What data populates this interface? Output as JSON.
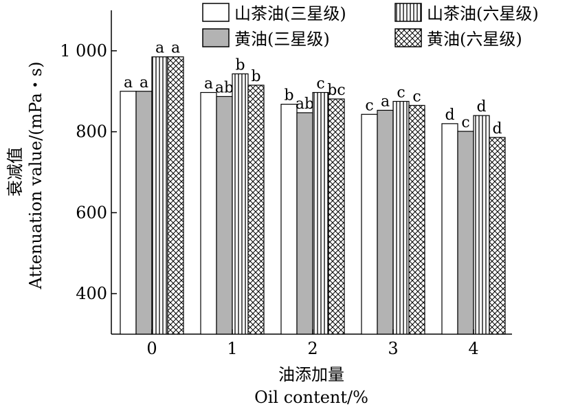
{
  "chart_data": {
    "type": "bar",
    "categories": [
      "0",
      "1",
      "2",
      "3",
      "4"
    ],
    "series": [
      {
        "name": "山茶油(三星级)",
        "values": [
          900,
          897,
          868,
          843,
          820
        ],
        "letters": [
          "a",
          "a",
          "b",
          "c",
          "d"
        ],
        "pattern": "white"
      },
      {
        "name": "黄油(三星级)",
        "values": [
          900,
          887,
          847,
          853,
          801
        ],
        "letters": [
          "a",
          "ab",
          "ab",
          "a",
          "c"
        ],
        "pattern": "gray"
      },
      {
        "name": "山茶油(六星级)",
        "values": [
          985,
          943,
          897,
          875,
          840
        ],
        "letters": [
          "a",
          "b",
          "c",
          "c",
          "d"
        ],
        "pattern": "vertical-lines"
      },
      {
        "name": "黄油(六星级)",
        "values": [
          985,
          915,
          881,
          865,
          786
        ],
        "letters": [
          "a",
          "b",
          "bc",
          "c",
          "d"
        ],
        "pattern": "crosshatch"
      }
    ],
    "xlabel_cn": "油添加量",
    "xlabel_en": "Oil content/%",
    "ylabel_cn": "衰减值",
    "ylabel_en": "Attenuation value/(mPa・s)",
    "yticks": [
      400,
      600,
      800,
      1000
    ],
    "ytick_labels": [
      "400",
      "600",
      "800",
      "1 000"
    ],
    "ylim": [
      300,
      1100
    ],
    "grid": false,
    "legend_position": "top-right"
  },
  "colors": {
    "gray_fill": "#b3b3b3",
    "stroke": "#000000"
  }
}
